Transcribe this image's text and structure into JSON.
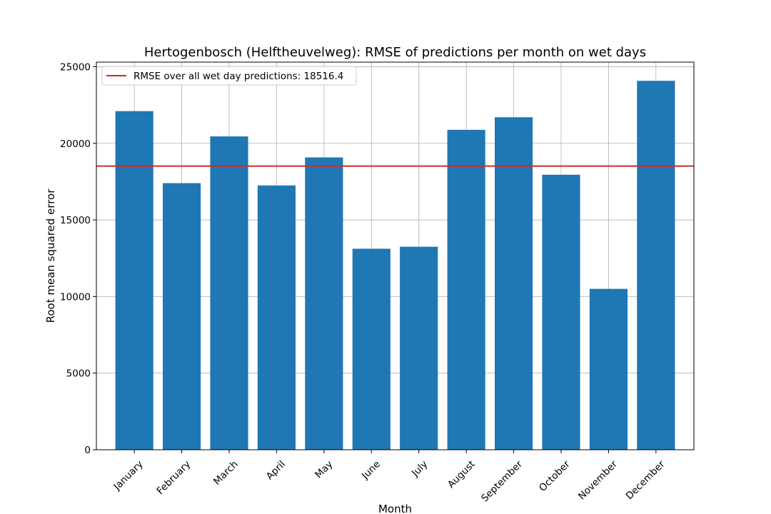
{
  "chart_data": {
    "type": "bar",
    "title": "Hertogenbosch (Helftheuvelweg): RMSE of predictions per month on wet days",
    "xlabel": "Month",
    "ylabel": "Root mean squared error",
    "categories": [
      "January",
      "February",
      "March",
      "April",
      "May",
      "June",
      "July",
      "August",
      "September",
      "October",
      "November",
      "December"
    ],
    "values": [
      22100,
      17400,
      20450,
      17250,
      19080,
      13120,
      13250,
      20880,
      21700,
      17950,
      10500,
      24080
    ],
    "ylim": [
      0,
      25300
    ],
    "yticks": [
      0,
      5000,
      10000,
      15000,
      20000,
      25000
    ],
    "grid": true,
    "bar_color": "#1f77b4",
    "reference_line": {
      "value": 18516.4,
      "label": "RMSE over all wet day predictions: 18516.4",
      "color": "#d62728"
    },
    "legend_position": "top-left"
  }
}
